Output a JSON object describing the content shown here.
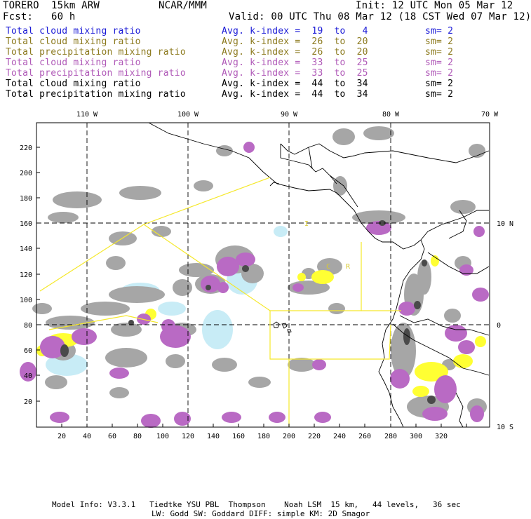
{
  "header": {
    "model": "TORERO  15km ARW",
    "org": "NCAR/MMM",
    "init": "Init: 12 UTC Mon 05 Mar 12",
    "fcst": "Fcst:   60 h",
    "valid": "Valid: 00 UTC Thu 08 Mar 12 (18 CST Wed 07 Mar 12)"
  },
  "legend": [
    {
      "field": "Total cloud mixing ratio",
      "kindex": "Avg. k-index =  19  to   4",
      "sm": "sm= 2",
      "color": "#1a1ad6"
    },
    {
      "field": "Total cloud mixing ratio",
      "kindex": "Avg. k-index =  26  to  20",
      "sm": "sm= 2",
      "color": "#8c7a1e"
    },
    {
      "field": "Total precipitation mixing ratio",
      "kindex": "Avg. k-index =  26  to  20",
      "sm": "sm= 2",
      "color": "#8c7a1e"
    },
    {
      "field": "Total cloud mixing ratio",
      "kindex": "Avg. k-index =  33  to  25",
      "sm": "sm= 2",
      "color": "#b05ab8"
    },
    {
      "field": "Total precipitation mixing ratio",
      "kindex": "Avg. k-index =  33  to  25",
      "sm": "sm= 2",
      "color": "#b05ab8"
    },
    {
      "field": "Total cloud mixing ratio",
      "kindex": "Avg. k-index =  44  to  34",
      "sm": "sm= 2",
      "color": "#000000"
    },
    {
      "field": "Total precipitation mixing ratio",
      "kindex": "Avg. k-index =  44  to  34",
      "sm": "sm= 2",
      "color": "#000000"
    }
  ],
  "map": {
    "lon_labels": [
      "110 W",
      "100 W",
      "90 W",
      "80 W",
      "70 W"
    ],
    "lat_labels": [
      "10 N",
      "0",
      "10 S"
    ],
    "x_ticks": [
      "20",
      "40",
      "60",
      "80",
      "100",
      "120",
      "140",
      "160",
      "180",
      "200",
      "220",
      "240",
      "260",
      "280",
      "300",
      "320"
    ],
    "y_ticks": [
      "20",
      "40",
      "60",
      "80",
      "100",
      "120",
      "140",
      "160",
      "180",
      "200",
      "220"
    ],
    "region_labels": [
      "I",
      "C",
      "R"
    ],
    "colors": {
      "yellow": "#ffff33",
      "purple": "#b96ac4",
      "gray": "#a6a6a6",
      "lightblue": "#c8ecf6",
      "boundary": "#f5e82a"
    }
  },
  "footer": {
    "line1": "Model Info: V3.3.1   Tiedtke YSU PBL  Thompson    Noah LSM  15 km,   44 levels,   36 sec",
    "line2": "LW: Godd SW: Goddard DIFF: simple KM: 2D Smagor"
  }
}
